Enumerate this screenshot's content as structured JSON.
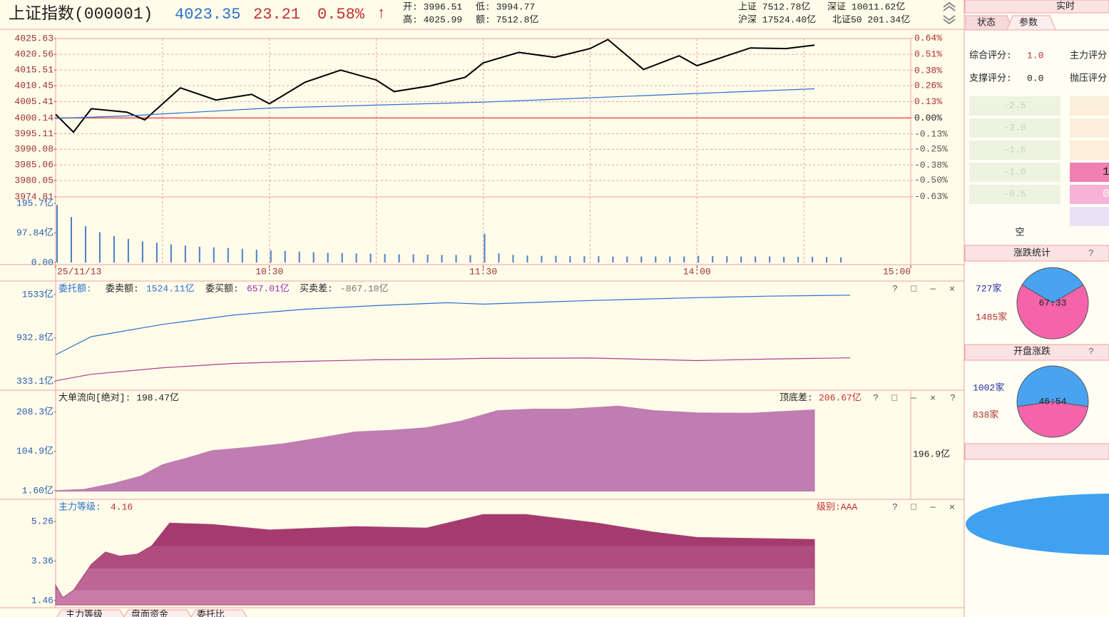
{
  "header": {
    "title": "上证指数(000001)",
    "price": "4023.35",
    "change": "23.21",
    "change_pct": "0.58%",
    "arrow": "↑",
    "stats": [
      "开: 3996.51",
      "低: 3994.77",
      "高: 4025.99",
      "额: 7512.8亿"
    ],
    "market": [
      "上证 7512.78亿",
      "深证 10011.62亿",
      "沪深 17524.40亿",
      "北证50 201.34亿"
    ]
  },
  "panel_icons": [
    "?",
    "□",
    "—",
    "✕"
  ],
  "chart_data": [
    {
      "type": "line",
      "xlim": [
        0,
        240
      ],
      "xticks": [
        {
          "value": 0,
          "label": "25/11/13"
        },
        {
          "value": 60,
          "label": "10:30"
        },
        {
          "value": 120,
          "label": "11:30"
        },
        {
          "value": 180,
          "label": "14:00"
        },
        {
          "value": 240,
          "label": "15:00"
        }
      ],
      "xgrid": [
        30,
        60,
        90,
        120,
        150,
        180,
        210,
        240
      ],
      "ylim": [
        3974.81,
        4025.63
      ],
      "yticks": [
        4025.63,
        4020.56,
        4015.51,
        4010.45,
        4005.41,
        4000.14,
        3995.11,
        3990.08,
        3985.06,
        3980.05,
        3974.81
      ],
      "y2lim": [
        -0.633,
        0.637
      ],
      "y2ticks": [
        {
          "value": 0.64,
          "label": "0.64%"
        },
        {
          "value": 0.51,
          "label": "0.51%"
        },
        {
          "value": 0.38,
          "label": "0.38%"
        },
        {
          "value": 0.26,
          "label": "0.26%"
        },
        {
          "value": 0.13,
          "label": "0.13%"
        },
        {
          "value": 0,
          "label": "0.00%"
        },
        {
          "value": -0.13,
          "label": "-0.13%"
        },
        {
          "value": -0.25,
          "label": "-0.25%"
        },
        {
          "value": -0.38,
          "label": "-0.38%"
        },
        {
          "value": -0.5,
          "label": "-0.50%"
        },
        {
          "value": -0.63,
          "label": "-0.63%"
        }
      ],
      "baseline": 4000.14,
      "grid": true,
      "series": [
        {
          "color": "#000000",
          "x": [
            0,
            5,
            10,
            20,
            25,
            35,
            45,
            55,
            60,
            70,
            80,
            90,
            95,
            105,
            115,
            120,
            130,
            140,
            150,
            155,
            165,
            175,
            180,
            195,
            205,
            213
          ],
          "values": [
            4001.3,
            3995.6,
            4003.1,
            4002,
            3999.5,
            4009.8,
            4005.9,
            4007.7,
            4004.7,
            4011.6,
            4015.5,
            4012.3,
            4008.6,
            4010.4,
            4013.2,
            4017.8,
            4021.2,
            4019.6,
            4022.4,
            4025.3,
            4015.7,
            4020.1,
            4016.9,
            4022.6,
            4022.4,
            4023.5
          ]
        },
        {
          "color": "#2a6fd0",
          "x": [
            0,
            20,
            60,
            120,
            180,
            213
          ],
          "values": [
            4000,
            4000.8,
            4003.3,
            4005.2,
            4008,
            4009.5
          ]
        }
      ]
    },
    {
      "type": "bar",
      "color": "#4a7fc4",
      "xlim": [
        0,
        240
      ],
      "ylim": [
        0,
        212
      ],
      "yticks": [
        {
          "value": 195.7,
          "label": "195.7亿"
        },
        {
          "value": 97.84,
          "label": "97.84亿"
        },
        {
          "value": 0,
          "label": "0.00"
        }
      ],
      "x": [
        0,
        4,
        8,
        12,
        16,
        20,
        24,
        28,
        32,
        36,
        40,
        44,
        48,
        52,
        56,
        60,
        64,
        68,
        72,
        76,
        80,
        84,
        88,
        92,
        96,
        100,
        104,
        108,
        112,
        116,
        120,
        124,
        128,
        132,
        136,
        140,
        144,
        148,
        152,
        156,
        160,
        164,
        168,
        172,
        176,
        180,
        184,
        188,
        192,
        196,
        200,
        204,
        208,
        212,
        216,
        220
      ],
      "values": [
        190,
        150,
        120,
        100,
        88,
        78,
        70,
        65,
        60,
        56,
        52,
        50,
        48,
        45,
        42,
        40,
        38,
        36,
        34,
        32,
        31,
        30,
        29,
        28,
        27,
        27,
        26,
        25,
        25,
        24,
        95,
        30,
        25,
        23,
        22,
        22,
        21,
        21,
        21,
        20,
        20,
        20,
        20,
        20,
        20,
        22,
        21,
        21,
        20,
        20,
        20,
        19,
        19,
        19,
        18,
        17
      ]
    },
    {
      "type": "line",
      "labels": [
        "委托额:",
        "委卖额:",
        "1524.11亿",
        "委买额:",
        "657.01亿",
        "买卖差:",
        "-867.10亿"
      ],
      "xlim": [
        0,
        240
      ],
      "ylim": [
        230,
        1680
      ],
      "yticks": [
        {
          "value": 1533,
          "label": "1533亿"
        },
        {
          "value": 932.8,
          "label": "932.8亿"
        },
        {
          "value": 333.1,
          "label": "333.1亿"
        }
      ],
      "series": [
        {
          "color": "#2a6fd0",
          "x": [
            0,
            10,
            30,
            50,
            70,
            90,
            110,
            120,
            150,
            180,
            200,
            223
          ],
          "values": [
            700,
            950,
            1120,
            1250,
            1330,
            1380,
            1420,
            1400,
            1450,
            1490,
            1510,
            1524
          ]
        },
        {
          "color": "#b03c90",
          "x": [
            0,
            10,
            30,
            50,
            70,
            90,
            110,
            120,
            150,
            180,
            200,
            223
          ],
          "values": [
            340,
            430,
            520,
            580,
            610,
            630,
            640,
            650,
            655,
            620,
            640,
            657
          ]
        }
      ]
    },
    {
      "type": "area",
      "color": "#c07db2",
      "labels": [
        "大单流向[绝对]:  198.47亿",
        "顶底差:",
        "206.67亿"
      ],
      "side_label": "196.9亿",
      "xlim": [
        0,
        240
      ],
      "ylim": [
        -10,
        260
      ],
      "yticks": [
        {
          "value": 208.3,
          "label": "208.3亿"
        },
        {
          "value": 104.9,
          "label": "104.9亿"
        },
        {
          "value": 1.6,
          "label": "1.60亿"
        }
      ],
      "x": [
        0,
        8,
        16,
        24,
        30,
        36,
        44,
        54,
        64,
        74,
        84,
        94,
        104,
        114,
        124,
        134,
        144,
        158,
        168,
        180,
        195,
        213
      ],
      "values": [
        1.6,
        5,
        20,
        40,
        70,
        85,
        107,
        115,
        125,
        140,
        156,
        160,
        167,
        185,
        212,
        216,
        216,
        224,
        212,
        206,
        205,
        214
      ]
    },
    {
      "type": "area",
      "color": "#a84478",
      "labels": [
        "主力等级:",
        "4.16",
        "级别:AAA"
      ],
      "xlim": [
        0,
        240
      ],
      "ylim": [
        1.25,
        6.23
      ],
      "yticks": [
        5.26,
        3.36,
        1.46
      ],
      "x": [
        0,
        2,
        5,
        10,
        14,
        18,
        23,
        27,
        32,
        44,
        60,
        84,
        104,
        120,
        132,
        152,
        168,
        180,
        213
      ],
      "values": [
        2.2,
        1.6,
        1.95,
        3.2,
        3.8,
        3.6,
        3.7,
        4.1,
        5.19,
        5.12,
        4.86,
        5.02,
        4.95,
        5.6,
        5.6,
        5.19,
        4.75,
        4.5,
        4.4
      ]
    },
    {
      "type": "pie",
      "title": "涨跌统计",
      "colors": [
        "#4aa3f0",
        "#f564aa"
      ],
      "values": [
        727,
        1485
      ],
      "value_labels": [
        "727家",
        "1485家"
      ],
      "ratio_label": "67:33"
    },
    {
      "type": "pie",
      "title": "开盘涨跌",
      "colors": [
        "#4aa3f0",
        "#f564aa"
      ],
      "values": [
        1002,
        838
      ],
      "value_labels": [
        "1002家",
        "838家"
      ],
      "ratio_label": "46:54"
    }
  ],
  "side": {
    "tab": "实时",
    "tabs": [
      "状态",
      "参数"
    ],
    "scores": [
      "综合评分:",
      "1.0",
      "支撑评分:",
      "0.0"
    ],
    "scores_right": [
      "主力评分",
      "抛压评分"
    ],
    "scale": [
      "-2.5",
      "-2.0",
      "-1.5",
      "-1.0",
      "-0.5"
    ],
    "scale_right": [
      "1",
      "0"
    ],
    "bottom_label": "空"
  },
  "bottom_tabs": [
    "主力等级",
    "盘面资金",
    "委托比"
  ]
}
